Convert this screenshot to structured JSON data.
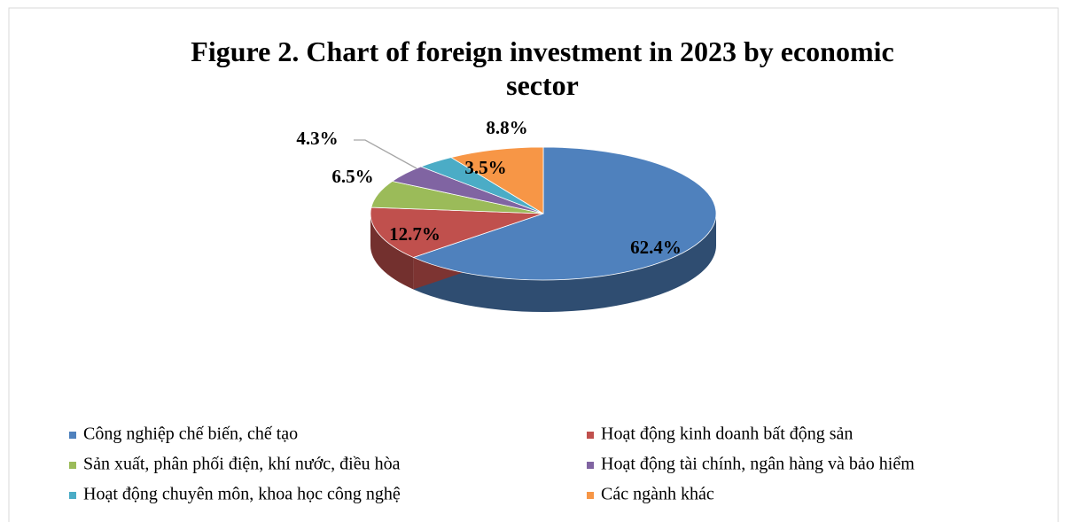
{
  "chart_data": {
    "type": "pie",
    "title": "Figure 2. Chart of foreign investment in 2023 by economic sector",
    "categories": [
      "Công nghiệp chế biến, chế tạo",
      "Hoạt động kinh doanh bất động sản",
      "Sản xuất, phân phối điện, khí nước, điều hòa",
      "Hoạt động tài chính, ngân hàng và bảo hiểm",
      "Hoạt động chuyên môn, khoa học công nghệ",
      "Các ngành khác"
    ],
    "values": [
      62.4,
      12.7,
      6.5,
      4.3,
      3.5,
      8.8
    ],
    "value_labels": [
      "62.4%",
      "12.7%",
      "6.5%",
      "4.3%",
      "3.5%",
      "8.8%"
    ],
    "colors": [
      "#4f81bd",
      "#c0504d",
      "#9bbb59",
      "#8064a2",
      "#4bacc6",
      "#f79646"
    ],
    "legend": "bottom"
  }
}
